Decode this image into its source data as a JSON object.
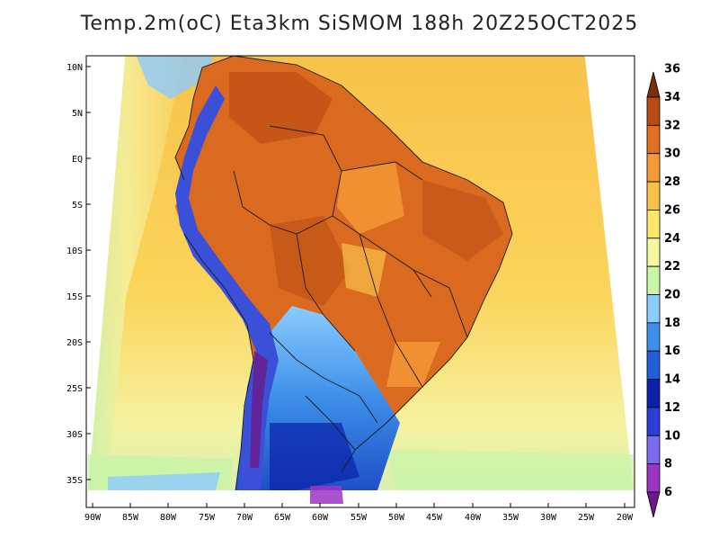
{
  "title": "Temp.2m(oC) Eta3km SiSMOM 188h 20Z25OCT2025",
  "lat_labels": [
    "10N",
    "5N",
    "EQ",
    "5S",
    "10S",
    "15S",
    "20S",
    "25S",
    "30S",
    "35S"
  ],
  "lon_labels": [
    "90W",
    "85W",
    "80W",
    "75W",
    "70W",
    "65W",
    "60W",
    "55W",
    "50W",
    "45W",
    "40W",
    "35W",
    "30W",
    "25W",
    "20W"
  ],
  "colorbar": {
    "labels": [
      "6",
      "8",
      "10",
      "12",
      "14",
      "16",
      "18",
      "20",
      "22",
      "24",
      "26",
      "28",
      "30",
      "32",
      "34",
      "36"
    ],
    "colors": [
      "#6b1a8a",
      "#9b35c4",
      "#7b6bee",
      "#2b3ed8",
      "#0a21a8",
      "#1f5fd8",
      "#3c8fe8",
      "#8ccbff",
      "#c8f5a8",
      "#f5f8a0",
      "#fbe56a",
      "#f8c24a",
      "#f59a35",
      "#e0701f",
      "#b84a14",
      "#7a2e0e"
    ]
  },
  "regions": {
    "ocean": "#f7c54a",
    "land_hot": "#d96a20",
    "andes_cold": "#3a50d8",
    "south_cool": "#6aaaf0"
  }
}
